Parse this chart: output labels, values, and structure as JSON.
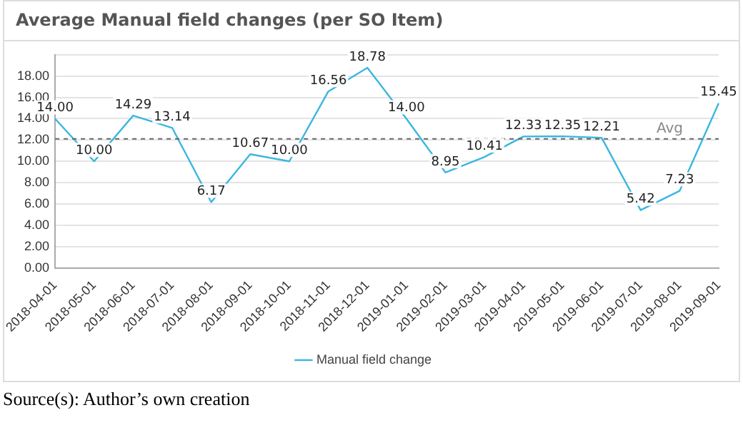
{
  "chart_data": {
    "type": "line",
    "title": "Average Manual field changes (per SO Item)",
    "categories": [
      "2018-04-01",
      "2018-05-01",
      "2018-06-01",
      "2018-07-01",
      "2018-08-01",
      "2018-09-01",
      "2018-10-01",
      "2018-11-01",
      "2018-12-01",
      "2019-01-01",
      "2019-02-01",
      "2019-03-01",
      "2019-04-01",
      "2019-05-01",
      "2019-06-01",
      "2019-07-01",
      "2019-08-01",
      "2019-09-01"
    ],
    "series": [
      {
        "name": "Manual field change",
        "color": "#3bb6e0",
        "values": [
          14.0,
          10.0,
          14.29,
          13.14,
          6.17,
          10.67,
          10.0,
          16.56,
          18.78,
          14.0,
          8.95,
          10.41,
          12.33,
          12.35,
          12.21,
          5.42,
          7.23,
          15.45
        ],
        "value_labels": [
          "14.00",
          "10.00",
          "14.29",
          "13.14",
          "6.17",
          "10.67",
          "10.00",
          "16.56",
          "18.78",
          "14.00",
          "8.95",
          "10.41",
          "12.33",
          "12.35",
          "12.21",
          "5.42",
          "7.23",
          "15.45"
        ]
      }
    ],
    "ylim": [
      0,
      20
    ],
    "yticks": [
      {
        "value": 0,
        "label": "0.00"
      },
      {
        "value": 2,
        "label": "2.00"
      },
      {
        "value": 4,
        "label": "4.00"
      },
      {
        "value": 6,
        "label": "6.00"
      },
      {
        "value": 8,
        "label": "8.00"
      },
      {
        "value": 10,
        "label": "10.00"
      },
      {
        "value": 12,
        "label": "12.00"
      },
      {
        "value": 14,
        "label": "14.00"
      },
      {
        "value": 16,
        "label": "16.00"
      },
      {
        "value": 18,
        "label": "18.00"
      },
      {
        "value": 20,
        "label": null
      }
    ],
    "ref_lines": [
      {
        "axis": "y",
        "value": 12.1,
        "label": "Avg",
        "color": "#666666",
        "line_style": "dashed"
      }
    ],
    "grid": "y",
    "legend": "bottom",
    "marker": "none",
    "line_style": "solid",
    "annotations": [
      "Source(s): Author’s own creation"
    ]
  }
}
